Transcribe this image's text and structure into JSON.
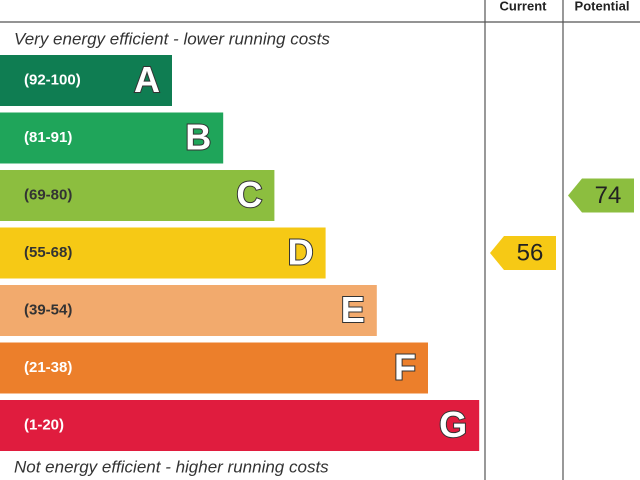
{
  "header": {
    "current": "Current",
    "potential": "Potential"
  },
  "top_note": "Very energy efficient - lower running costs",
  "bottom_note": "Not energy efficient - higher running costs",
  "bands": [
    {
      "range": "(92-100)",
      "letter": "A",
      "color": "#0f7d52"
    },
    {
      "range": "(81-91)",
      "letter": "B",
      "color": "#1fa55a"
    },
    {
      "range": "(69-80)",
      "letter": "C",
      "color": "#8cbe3f"
    },
    {
      "range": "(55-68)",
      "letter": "D",
      "color": "#f6c915"
    },
    {
      "range": "(39-54)",
      "letter": "E",
      "color": "#f2aa6d"
    },
    {
      "range": "(21-38)",
      "letter": "F",
      "color": "#ec7f2b"
    },
    {
      "range": "(1-20)",
      "letter": "G",
      "color": "#e01c3e"
    }
  ],
  "current": 56,
  "potential": 74
}
